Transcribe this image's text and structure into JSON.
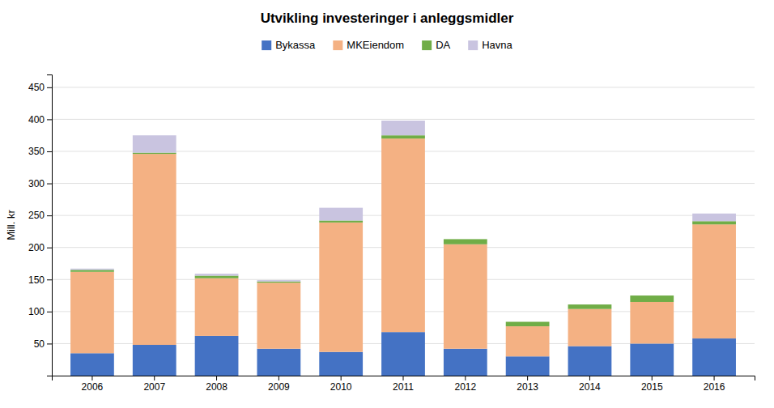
{
  "chart_data": {
    "type": "bar",
    "stacked": true,
    "title": "Utvikling investeringer i anleggsmidler",
    "y_label": "Mill. kr",
    "categories": [
      "2006",
      "2007",
      "2008",
      "2009",
      "2010",
      "2011",
      "2012",
      "2013",
      "2014",
      "2015",
      "2016"
    ],
    "series": [
      {
        "name": "Bykassa",
        "color": "#4472C4",
        "values": [
          35,
          48,
          62,
          42,
          37,
          68,
          42,
          30,
          46,
          50,
          58
        ]
      },
      {
        "name": "MKEiendom",
        "color": "#F4B183",
        "values": [
          127,
          298,
          90,
          103,
          202,
          302,
          163,
          47,
          58,
          65,
          178
        ]
      },
      {
        "name": "DA",
        "color": "#70AD47",
        "values": [
          3,
          2,
          4,
          2,
          3,
          5,
          8,
          7,
          7,
          10,
          5
        ]
      },
      {
        "name": "Havna",
        "color": "#C9C4E0",
        "values": [
          2,
          27,
          3,
          2,
          20,
          23,
          0,
          0,
          0,
          0,
          12
        ]
      }
    ],
    "ylim": [
      0,
      470
    ],
    "yticks": [
      50,
      100,
      150,
      200,
      250,
      300,
      350,
      400,
      450
    ],
    "grid": true,
    "legend": "top"
  }
}
